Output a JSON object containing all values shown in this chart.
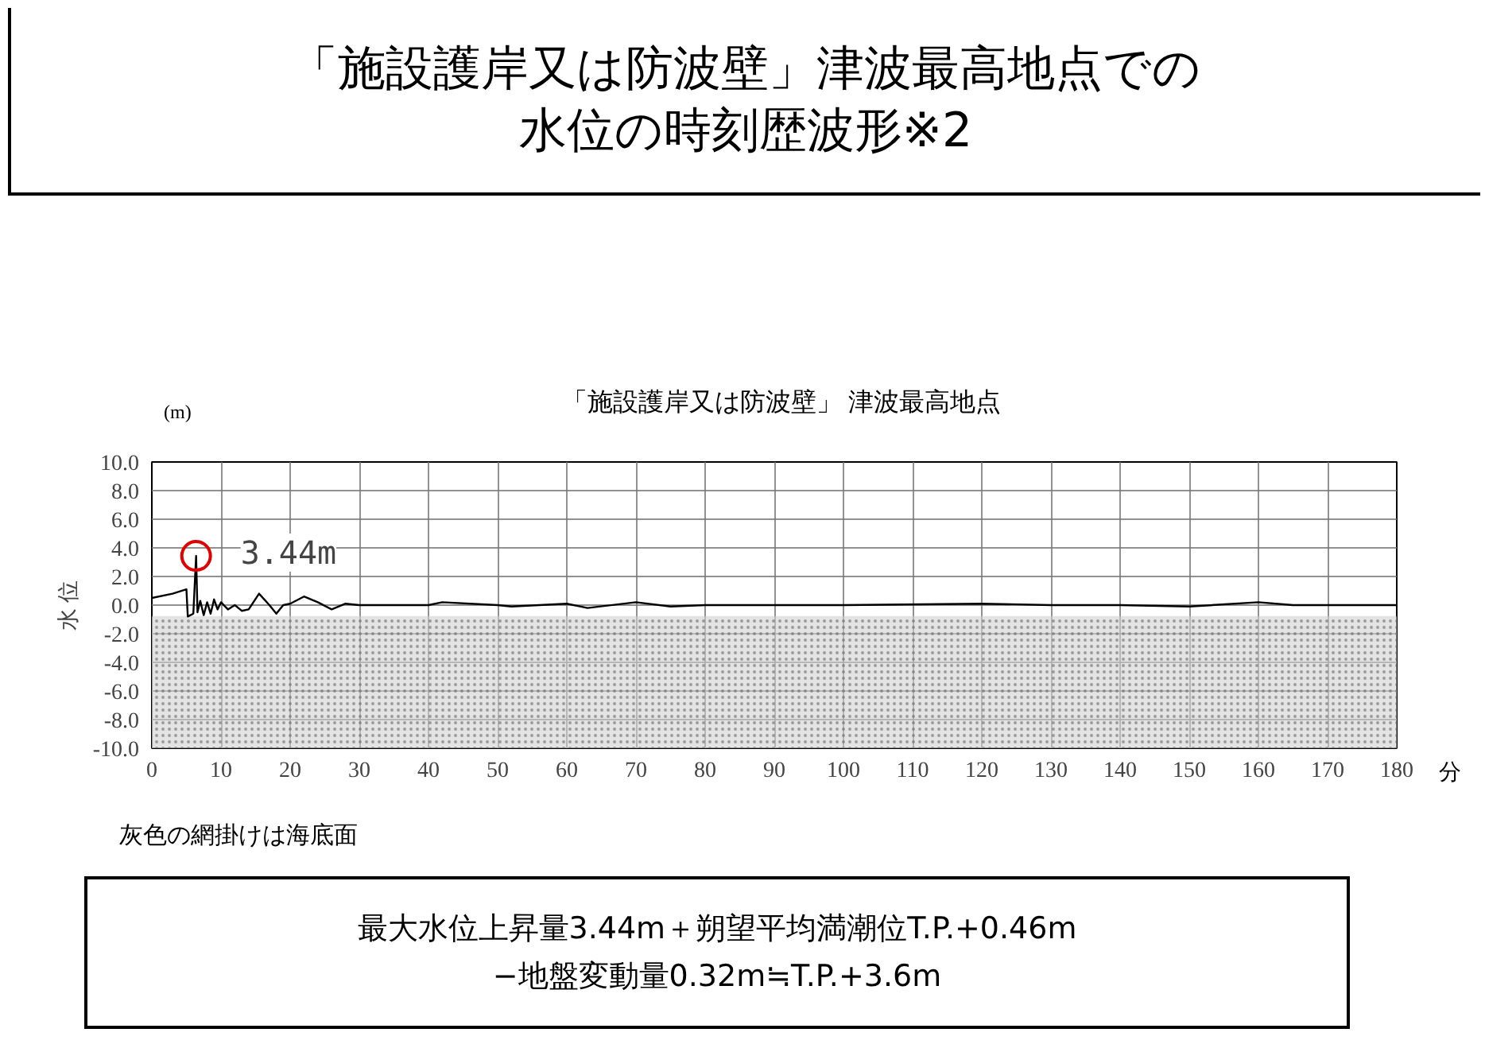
{
  "chart_data": {
    "type": "line",
    "title": "「施設護岸又は防波壁」津波最高地点での水位の時刻歴波形※2",
    "subtitle": "「施設護岸又は防波壁」 津波最高地点",
    "xlabel": "分",
    "ylabel": "水 位",
    "annotations": [
      "(m)",
      {
        "text": "3.44m",
        "x": 6.4,
        "y": 3.44
      },
      "灰色の網掛けは海底面",
      "最大水位上昇量3.44m＋朔望平均満潮位T.P.+0.46m\n−地盤変動量0.32m≒T.P.+3.6m"
    ],
    "x": [
      0,
      3,
      5,
      5.2,
      6,
      6.4,
      6.6,
      7,
      7.5,
      8,
      8.5,
      9,
      9.5,
      10,
      11,
      12,
      13,
      14,
      15.5,
      17,
      18,
      19,
      20,
      22,
      24,
      26,
      28,
      30,
      40,
      42,
      50,
      52,
      60,
      63,
      70,
      75,
      80,
      100,
      120,
      130,
      140,
      150,
      160,
      165,
      180
    ],
    "values": [
      0.5,
      0.8,
      1.1,
      -0.8,
      -0.6,
      3.44,
      -0.5,
      0.3,
      -0.7,
      0.2,
      -0.6,
      0.4,
      -0.3,
      0.2,
      -0.3,
      0.0,
      -0.4,
      -0.3,
      0.8,
      0.0,
      -0.6,
      0.0,
      0.1,
      0.6,
      0.2,
      -0.3,
      0.1,
      0.0,
      0.0,
      0.2,
      0.0,
      -0.1,
      0.1,
      -0.2,
      0.2,
      -0.1,
      0.0,
      0.0,
      0.1,
      0.0,
      0.0,
      -0.1,
      0.2,
      0.0,
      0.0
    ],
    "color": "#000000",
    "xlim": [
      0,
      180
    ],
    "ylim": [
      -10,
      10
    ],
    "xticks": [
      0,
      10,
      20,
      30,
      40,
      50,
      60,
      70,
      80,
      90,
      100,
      110,
      120,
      130,
      140,
      150,
      160,
      170,
      180
    ],
    "yticks": [
      {
        "value": -10,
        "label": "-10.0"
      },
      {
        "value": -8,
        "label": "-8.0"
      },
      {
        "value": -6,
        "label": "-6.0"
      },
      {
        "value": -4,
        "label": "-4.0"
      },
      {
        "value": -2,
        "label": "-2.0"
      },
      {
        "value": 0,
        "label": "0.0"
      },
      {
        "value": 2,
        "label": "2.0"
      },
      {
        "value": 4,
        "label": "4.0"
      },
      {
        "value": 6,
        "label": "6.0"
      },
      {
        "value": 8,
        "label": "8.0"
      },
      {
        "value": 10,
        "label": "10.0"
      }
    ],
    "bands": [
      {
        "axis": "y",
        "from": -10,
        "to": -0.8,
        "color": "#d0d0d0"
      }
    ],
    "grid": true,
    "marker": "none",
    "line_style": "solid"
  }
}
